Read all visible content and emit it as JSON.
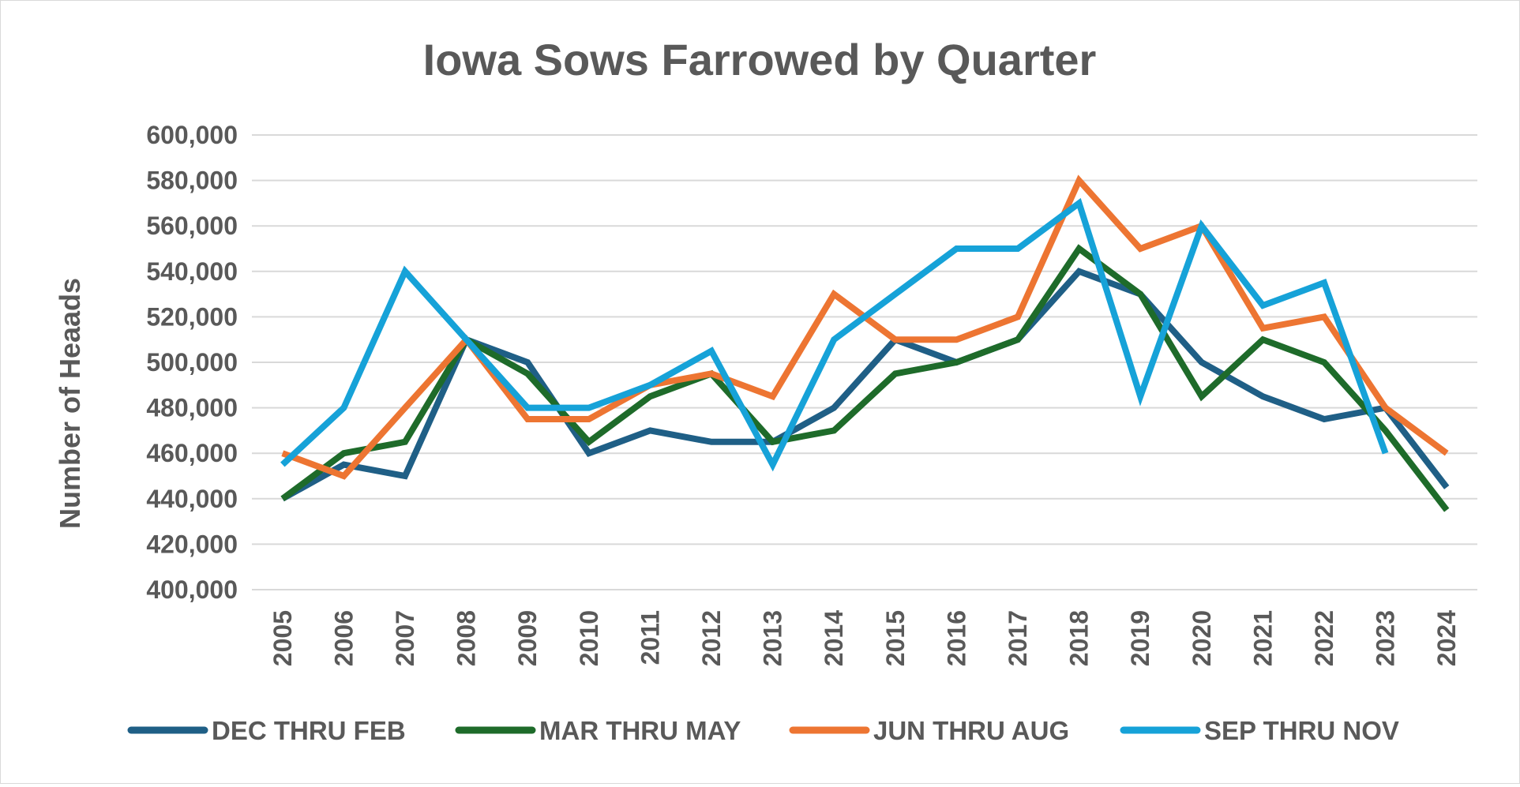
{
  "chart_data": {
    "type": "line",
    "title": "Iowa Sows Farrowed by Quarter",
    "xlabel": "",
    "ylabel": "Number of Heaads",
    "ylim": [
      400000,
      600000
    ],
    "yticks": [
      400000,
      420000,
      440000,
      460000,
      480000,
      500000,
      520000,
      540000,
      560000,
      580000,
      600000
    ],
    "ytick_labels": [
      "400,000",
      "420,000",
      "440,000",
      "460,000",
      "480,000",
      "500,000",
      "520,000",
      "540,000",
      "560,000",
      "580,000",
      "600,000"
    ],
    "categories": [
      "2005",
      "2006",
      "2007",
      "2008",
      "2009",
      "2010",
      "2011",
      "2012",
      "2013",
      "2014",
      "2015",
      "2016",
      "2017",
      "2018",
      "2019",
      "2020",
      "2021",
      "2022",
      "2023",
      "2024"
    ],
    "grid": "horizontal",
    "legend_position": "bottom",
    "series": [
      {
        "name": "DEC THRU FEB",
        "color": "#1f5f86",
        "values": [
          440000,
          455000,
          450000,
          510000,
          500000,
          460000,
          470000,
          465000,
          465000,
          480000,
          510000,
          500000,
          510000,
          540000,
          530000,
          500000,
          485000,
          475000,
          480000,
          445000
        ]
      },
      {
        "name": "MAR THRU MAY",
        "color": "#1e6b2a",
        "values": [
          440000,
          460000,
          465000,
          510000,
          495000,
          465000,
          485000,
          495000,
          465000,
          470000,
          495000,
          500000,
          510000,
          550000,
          530000,
          485000,
          510000,
          500000,
          470000,
          435000
        ]
      },
      {
        "name": "JUN THRU AUG",
        "color": "#ed7532",
        "values": [
          460000,
          450000,
          480000,
          510000,
          475000,
          475000,
          490000,
          495000,
          485000,
          530000,
          510000,
          510000,
          520000,
          580000,
          550000,
          560000,
          515000,
          520000,
          480000,
          460000
        ]
      },
      {
        "name": "SEP THRU NOV",
        "color": "#16a2d8",
        "values": [
          455000,
          480000,
          540000,
          510000,
          480000,
          480000,
          490000,
          505000,
          455000,
          510000,
          530000,
          550000,
          550000,
          570000,
          485000,
          560000,
          525000,
          535000,
          460000,
          null
        ]
      }
    ]
  }
}
